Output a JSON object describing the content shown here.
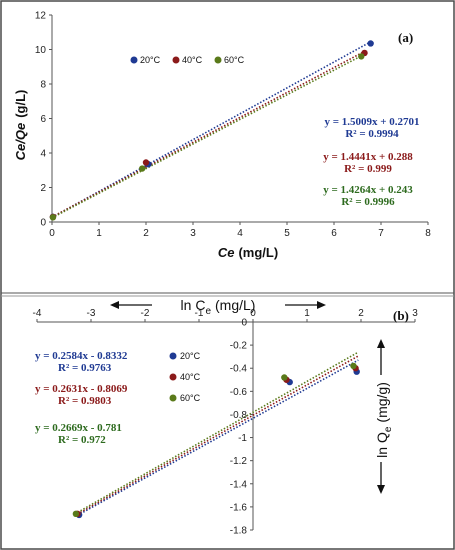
{
  "colors": {
    "s20": "#1f3a93",
    "s40": "#8b1a1a",
    "s60": "#5a7a1a",
    "eq20": "#1f3a93",
    "eq40": "#8b1a1a",
    "eq60": "#2e6b1f",
    "axis": "#555555",
    "frame": "#4a4a4a"
  },
  "chart_data": [
    {
      "type": "scatter",
      "panel_label": "(a)",
      "xlabel_main": "Ce",
      "xlabel_unit": "(mg/L)",
      "ylabel_main": "Ce/Qe",
      "ylabel_unit": "(g/L)",
      "xlim": [
        0,
        8
      ],
      "ylim": [
        0,
        12
      ],
      "xticks": [
        0,
        1,
        2,
        3,
        4,
        5,
        6,
        7,
        8
      ],
      "yticks": [
        0,
        2,
        4,
        6,
        8,
        10,
        12
      ],
      "legend_placement": "top-left",
      "series": [
        {
          "name": "20°C",
          "color_key": "s20",
          "points": [
            [
              0.02,
              0.3
            ],
            [
              2.05,
              3.35
            ],
            [
              6.78,
              10.35
            ]
          ],
          "fit": {
            "slope": 1.5009,
            "intercept": 0.2701,
            "x_range": [
              0,
              6.8
            ]
          },
          "equation": "y = 1.5009x + 0.2701",
          "r2": "R² = 0.9994"
        },
        {
          "name": "40°C",
          "color_key": "s40",
          "points": [
            [
              0.02,
              0.29
            ],
            [
              2.0,
              3.45
            ],
            [
              6.65,
              9.8
            ]
          ],
          "fit": {
            "slope": 1.4441,
            "intercept": 0.288,
            "x_range": [
              0,
              6.7
            ]
          },
          "equation": "y = 1.4441x + 0.288",
          "r2": "R² = 0.999"
        },
        {
          "name": "60°C",
          "color_key": "s60",
          "points": [
            [
              0.02,
              0.27
            ],
            [
              1.92,
              3.1
            ],
            [
              6.58,
              9.6
            ]
          ],
          "fit": {
            "slope": 1.4264,
            "intercept": 0.243,
            "x_range": [
              0,
              6.6
            ]
          },
          "equation": "y = 1.4264x + 0.243",
          "r2": "R² = 0.9996"
        }
      ]
    },
    {
      "type": "scatter",
      "panel_label": "(b)",
      "xlabel_main": "ln C",
      "xlabel_sub": "e",
      "xlabel_unit": "(mg/L)",
      "ylabel_main": "ln Q",
      "ylabel_sub": "e",
      "ylabel_unit": "(mg/g)",
      "xlim": [
        -4,
        3
      ],
      "ylim": [
        -1.8,
        0
      ],
      "xticks": [
        -4,
        -3,
        -2,
        -1,
        0,
        1,
        2,
        3
      ],
      "yticks": [
        0,
        -0.2,
        -0.4,
        -0.6,
        -0.8,
        -1,
        -1.2,
        -1.4,
        -1.6,
        -1.8
      ],
      "legend_placement": "center-left",
      "series": [
        {
          "name": "20°C",
          "color_key": "s20",
          "points": [
            [
              -3.22,
              -1.67
            ],
            [
              0.68,
              -0.52
            ],
            [
              1.92,
              -0.43
            ]
          ],
          "fit": {
            "slope": 0.2584,
            "intercept": -0.8332,
            "x_range": [
              -3.25,
              1.95
            ]
          },
          "equation": "y = 0.2584x - 0.8332",
          "r2": "R² = 0.9763"
        },
        {
          "name": "40°C",
          "color_key": "s40",
          "points": [
            [
              -3.25,
              -1.66
            ],
            [
              0.62,
              -0.5
            ],
            [
              1.9,
              -0.4
            ]
          ],
          "fit": {
            "slope": 0.2631,
            "intercept": -0.8069,
            "x_range": [
              -3.25,
              1.95
            ]
          },
          "equation": "y = 0.2631x - 0.8069",
          "r2": "R² = 0.9803"
        },
        {
          "name": "60°C",
          "color_key": "s60",
          "points": [
            [
              -3.28,
              -1.66
            ],
            [
              0.58,
              -0.48
            ],
            [
              1.86,
              -0.38
            ]
          ],
          "fit": {
            "slope": 0.2669,
            "intercept": -0.781,
            "x_range": [
              -3.3,
              1.95
            ]
          },
          "equation": "y = 0.2669x - 0.781",
          "r2": "R² = 0.972"
        }
      ]
    }
  ]
}
